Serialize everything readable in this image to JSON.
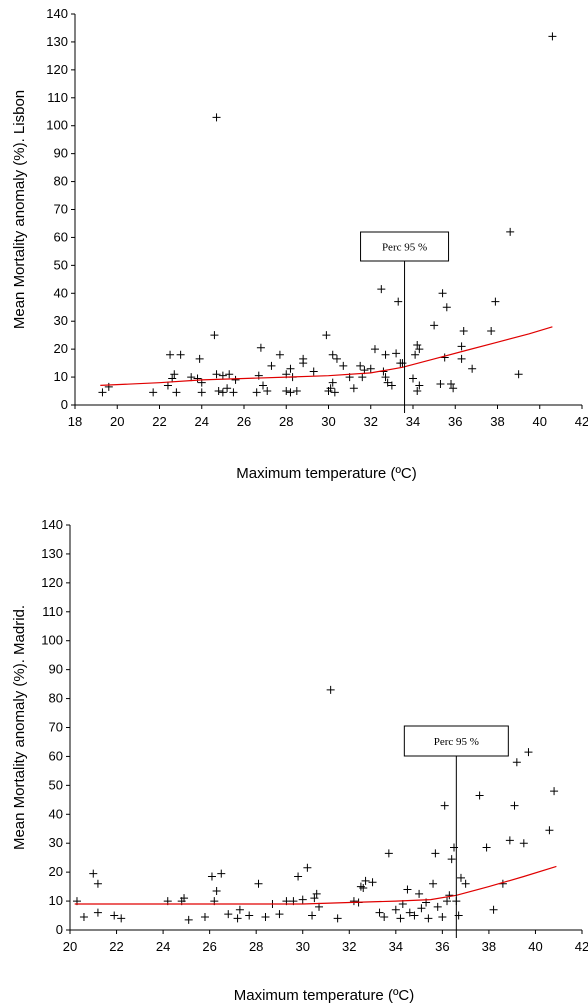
{
  "chart_data": [
    {
      "type": "scatter",
      "xlabel": "Maximum temperature (ºC)",
      "ylabel": "Mean Mortality anomaly (%). Lisbon",
      "xlim": [
        18,
        42
      ],
      "ylim": [
        0,
        140
      ],
      "x_ticks": [
        "18",
        "20",
        "22",
        "24",
        "26",
        "28",
        "30",
        "32",
        "34",
        "36",
        "38",
        "40",
        "42"
      ],
      "y_ticks": [
        "0",
        "10",
        "20",
        "30",
        "40",
        "50",
        "60",
        "70",
        "80",
        "90",
        "100",
        "110",
        "120",
        "130",
        "140"
      ],
      "grid": false,
      "annotation": {
        "label": "Perc 95 %",
        "x": 33.6
      },
      "colors": {
        "points": "#000000",
        "trend": "#e00000"
      },
      "points": [
        [
          19.3,
          4.5
        ],
        [
          19.6,
          6.5
        ],
        [
          21.7,
          4.5
        ],
        [
          22.4,
          7
        ],
        [
          22.5,
          18
        ],
        [
          22.6,
          9.5
        ],
        [
          22.7,
          11
        ],
        [
          22.8,
          4.5
        ],
        [
          23,
          18
        ],
        [
          23.5,
          10
        ],
        [
          23.8,
          9.5
        ],
        [
          23.9,
          16.5
        ],
        [
          24,
          4.5
        ],
        [
          24,
          8
        ],
        [
          24.6,
          25
        ],
        [
          24.7,
          103
        ],
        [
          24.7,
          11
        ],
        [
          24.8,
          5
        ],
        [
          25,
          10.5
        ],
        [
          25,
          4.5
        ],
        [
          25.2,
          6
        ],
        [
          25.3,
          11
        ],
        [
          25.5,
          4.5
        ],
        [
          25.6,
          9
        ],
        [
          26.6,
          4.5
        ],
        [
          26.7,
          10.5
        ],
        [
          26.8,
          20.5
        ],
        [
          26.9,
          7
        ],
        [
          27.1,
          5
        ],
        [
          27.3,
          14
        ],
        [
          27.7,
          18
        ],
        [
          28,
          11
        ],
        [
          28,
          5
        ],
        [
          28.2,
          4.5
        ],
        [
          28.2,
          13
        ],
        [
          28.3,
          10
        ],
        [
          28.5,
          5
        ],
        [
          28.8,
          15
        ],
        [
          28.8,
          16.5
        ],
        [
          29.3,
          12
        ],
        [
          29.9,
          25
        ],
        [
          30,
          5
        ],
        [
          30.1,
          6
        ],
        [
          30.2,
          8
        ],
        [
          30.2,
          18
        ],
        [
          30.3,
          4.5
        ],
        [
          30.4,
          16.5
        ],
        [
          30.7,
          14
        ],
        [
          31,
          10
        ],
        [
          31.2,
          6
        ],
        [
          31.5,
          14
        ],
        [
          31.6,
          10
        ],
        [
          31.7,
          12.5
        ],
        [
          32,
          13
        ],
        [
          32.2,
          20
        ],
        [
          32.5,
          41.5
        ],
        [
          32.6,
          12
        ],
        [
          32.7,
          18
        ],
        [
          32.7,
          10
        ],
        [
          32.8,
          8
        ],
        [
          33,
          7
        ],
        [
          33.2,
          18.5
        ],
        [
          33.3,
          37
        ],
        [
          33.4,
          15
        ],
        [
          33.5,
          15
        ],
        [
          34,
          9.5
        ],
        [
          34.1,
          18
        ],
        [
          34.2,
          5
        ],
        [
          34.2,
          21.5
        ],
        [
          34.3,
          20
        ],
        [
          34.3,
          7
        ],
        [
          35,
          28.5
        ],
        [
          35.3,
          7.5
        ],
        [
          35.4,
          40
        ],
        [
          35.5,
          17
        ],
        [
          35.6,
          35
        ],
        [
          35.8,
          7.5
        ],
        [
          35.9,
          6
        ],
        [
          36.3,
          21
        ],
        [
          36.3,
          16.5
        ],
        [
          36.4,
          26.5
        ],
        [
          36.8,
          13
        ],
        [
          37.7,
          26.5
        ],
        [
          37.9,
          37
        ],
        [
          38.6,
          62
        ],
        [
          39,
          11
        ],
        [
          40.6,
          132
        ]
      ],
      "trend": [
        [
          19.2,
          7
        ],
        [
          22,
          8
        ],
        [
          24,
          9
        ],
        [
          26,
          9.5
        ],
        [
          28,
          10
        ],
        [
          30,
          10.5
        ],
        [
          32,
          11.5
        ],
        [
          33.5,
          13.5
        ],
        [
          35,
          16.5
        ],
        [
          36.5,
          19.5
        ],
        [
          38,
          22.5
        ],
        [
          39.5,
          25.5
        ],
        [
          40.6,
          28
        ]
      ]
    },
    {
      "type": "scatter",
      "xlabel": "Maximum temperature (ºC)",
      "ylabel": "Mean Mortality anomaly (%). Madrid.",
      "xlim": [
        20,
        42
      ],
      "ylim": [
        0,
        140
      ],
      "x_ticks": [
        "20",
        "22",
        "24",
        "26",
        "28",
        "30",
        "32",
        "34",
        "36",
        "38",
        "40",
        "42"
      ],
      "y_ticks": [
        "0",
        "10",
        "20",
        "30",
        "40",
        "50",
        "60",
        "70",
        "80",
        "90",
        "100",
        "110",
        "120",
        "130",
        "140"
      ],
      "grid": false,
      "annotation": {
        "label": "Perc 95 %",
        "x": 36.6
      },
      "colors": {
        "points": "#000000",
        "trend": "#e00000"
      },
      "points": [
        [
          20.3,
          10
        ],
        [
          20.6,
          4.5
        ],
        [
          21,
          19.5
        ],
        [
          21.2,
          16
        ],
        [
          21.2,
          6
        ],
        [
          21.9,
          5
        ],
        [
          22.2,
          4
        ],
        [
          24.2,
          10
        ],
        [
          24.8,
          10
        ],
        [
          24.9,
          11
        ],
        [
          25.1,
          3.5
        ],
        [
          25.8,
          4.5
        ],
        [
          26.1,
          18.5
        ],
        [
          26.3,
          13.5
        ],
        [
          26.5,
          19.5
        ],
        [
          26.2,
          10
        ],
        [
          26.8,
          5.5
        ],
        [
          27.2,
          4
        ],
        [
          27.3,
          7
        ],
        [
          27.7,
          5
        ],
        [
          28.1,
          16
        ],
        [
          28.4,
          4.5
        ],
        [
          28.7,
          9
        ],
        [
          29,
          5.5
        ],
        [
          29.3,
          10
        ],
        [
          29.6,
          10
        ],
        [
          29.8,
          18.5
        ],
        [
          30,
          10.5
        ],
        [
          30.2,
          21.5
        ],
        [
          30.4,
          5
        ],
        [
          30.5,
          11
        ],
        [
          30.6,
          12.5
        ],
        [
          30.7,
          8
        ],
        [
          31.2,
          83
        ],
        [
          31.5,
          4
        ],
        [
          32.2,
          10
        ],
        [
          32.4,
          9.5
        ],
        [
          32.5,
          15
        ],
        [
          32.6,
          14.5
        ],
        [
          32.7,
          17
        ],
        [
          33,
          16.5
        ],
        [
          33.3,
          6
        ],
        [
          33.5,
          4.5
        ],
        [
          33.7,
          26.5
        ],
        [
          34,
          7
        ],
        [
          34.2,
          4
        ],
        [
          34.3,
          9
        ],
        [
          34.5,
          14
        ],
        [
          34.6,
          6
        ],
        [
          34.8,
          5
        ],
        [
          35,
          12.5
        ],
        [
          35.1,
          7.5
        ],
        [
          35.3,
          9.5
        ],
        [
          35.4,
          4
        ],
        [
          35.6,
          16
        ],
        [
          35.7,
          26.5
        ],
        [
          35.8,
          8
        ],
        [
          36,
          4.5
        ],
        [
          36.1,
          43
        ],
        [
          36.2,
          10
        ],
        [
          36.3,
          12
        ],
        [
          36.4,
          24.5
        ],
        [
          36.5,
          28.5
        ],
        [
          36.6,
          10
        ],
        [
          36.7,
          5
        ],
        [
          36.8,
          18
        ],
        [
          37,
          16
        ],
        [
          37.6,
          46.5
        ],
        [
          37.9,
          28.5
        ],
        [
          38.2,
          7
        ],
        [
          38.6,
          16
        ],
        [
          38.9,
          31
        ],
        [
          39.1,
          43
        ],
        [
          39.2,
          58
        ],
        [
          39.5,
          30
        ],
        [
          39.7,
          61.5
        ],
        [
          40.6,
          34.5
        ],
        [
          40.8,
          48
        ]
      ],
      "trend": [
        [
          20.2,
          9
        ],
        [
          22,
          9
        ],
        [
          24,
          9
        ],
        [
          26,
          9
        ],
        [
          28,
          9
        ],
        [
          30,
          9
        ],
        [
          32,
          9.5
        ],
        [
          34,
          10
        ],
        [
          35.5,
          10.5
        ],
        [
          36.6,
          12
        ],
        [
          38,
          15
        ],
        [
          39.5,
          18.5
        ],
        [
          40.9,
          22
        ]
      ]
    }
  ]
}
